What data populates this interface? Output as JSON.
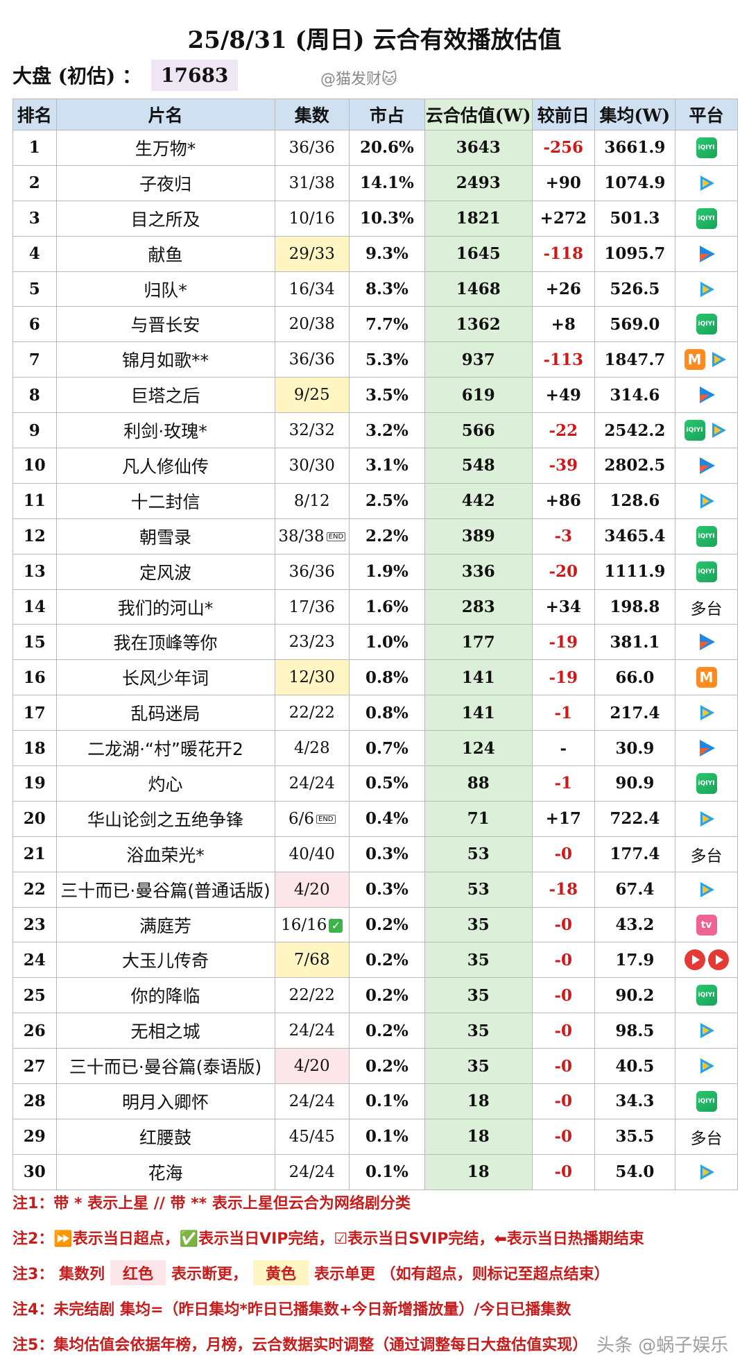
{
  "title": "25/8/31 (周日) 云合有效播放估值",
  "summary": {
    "label": "大盘 (初估) ：",
    "value": "17683"
  },
  "watermark": "@猫发财🐱",
  "headers": [
    "排名",
    "片名",
    "集数",
    "市占",
    "云合估值(W)",
    "较前日",
    "集均(W)",
    "平台"
  ],
  "rows": [
    {
      "rank": "1",
      "title": "生万物*",
      "eps": "36/36",
      "share": "20.6%",
      "est": "3643",
      "delta": "-256",
      "avg": "3661.9",
      "platforms": [
        "iqiyi"
      ]
    },
    {
      "rank": "2",
      "title": "子夜归",
      "eps": "31/38",
      "share": "14.1%",
      "est": "2493",
      "delta": "+90",
      "avg": "1074.9",
      "platforms": [
        "tencent"
      ]
    },
    {
      "rank": "3",
      "title": "目之所及",
      "eps": "10/16",
      "share": "10.3%",
      "est": "1821",
      "delta": "+272",
      "avg": "501.3",
      "platforms": [
        "iqiyi"
      ]
    },
    {
      "rank": "4",
      "title": "献鱼",
      "eps": "29/33",
      "share": "9.3%",
      "est": "1645",
      "delta": "-118",
      "avg": "1095.7",
      "platforms": [
        "youku"
      ],
      "eps_hl": "yellow"
    },
    {
      "rank": "5",
      "title": "归队*",
      "eps": "16/34",
      "share": "8.3%",
      "est": "1468",
      "delta": "+26",
      "avg": "526.5",
      "platforms": [
        "tencent"
      ]
    },
    {
      "rank": "6",
      "title": "与晋长安",
      "eps": "20/38",
      "share": "7.7%",
      "est": "1362",
      "delta": "+8",
      "avg": "569.0",
      "platforms": [
        "iqiyi"
      ]
    },
    {
      "rank": "7",
      "title": "锦月如歌**",
      "eps": "36/36",
      "share": "5.3%",
      "est": "937",
      "delta": "-113",
      "avg": "1847.7",
      "platforms": [
        "mango",
        "tencent"
      ]
    },
    {
      "rank": "8",
      "title": "巨塔之后",
      "eps": "9/25",
      "share": "3.5%",
      "est": "619",
      "delta": "+49",
      "avg": "314.6",
      "platforms": [
        "youku"
      ],
      "eps_hl": "yellow"
    },
    {
      "rank": "9",
      "title": "利剑·玫瑰*",
      "eps": "32/32",
      "share": "3.2%",
      "est": "566",
      "delta": "-22",
      "avg": "2542.2",
      "platforms": [
        "iqiyi",
        "tencent"
      ]
    },
    {
      "rank": "10",
      "title": "凡人修仙传",
      "eps": "30/30",
      "share": "3.1%",
      "est": "548",
      "delta": "-39",
      "avg": "2802.5",
      "platforms": [
        "youku"
      ]
    },
    {
      "rank": "11",
      "title": "十二封信",
      "eps": "8/12",
      "share": "2.5%",
      "est": "442",
      "delta": "+86",
      "avg": "128.6",
      "platforms": [
        "tencent"
      ]
    },
    {
      "rank": "12",
      "title": "朝雪录",
      "eps": "38/38",
      "share": "2.2%",
      "est": "389",
      "delta": "-3",
      "avg": "3465.4",
      "platforms": [
        "iqiyi"
      ],
      "end": "END"
    },
    {
      "rank": "13",
      "title": "定风波",
      "eps": "36/36",
      "share": "1.9%",
      "est": "336",
      "delta": "-20",
      "avg": "1111.9",
      "platforms": [
        "iqiyi"
      ]
    },
    {
      "rank": "14",
      "title": "我们的河山*",
      "eps": "17/36",
      "share": "1.6%",
      "est": "283",
      "delta": "+34",
      "avg": "198.8",
      "platform_text": "多台"
    },
    {
      "rank": "15",
      "title": "我在顶峰等你",
      "eps": "23/23",
      "share": "1.0%",
      "est": "177",
      "delta": "-19",
      "avg": "381.1",
      "platforms": [
        "youku"
      ]
    },
    {
      "rank": "16",
      "title": "长风少年词",
      "eps": "12/30",
      "share": "0.8%",
      "est": "141",
      "delta": "-19",
      "avg": "66.0",
      "platforms": [
        "mango"
      ],
      "eps_hl": "yellow"
    },
    {
      "rank": "17",
      "title": "乱码迷局",
      "eps": "22/22",
      "share": "0.8%",
      "est": "141",
      "delta": "-1",
      "avg": "217.4",
      "platforms": [
        "tencent"
      ]
    },
    {
      "rank": "18",
      "title": "二龙湖·“村”暖花开2",
      "eps": "4/28",
      "share": "0.7%",
      "est": "124",
      "delta": "-",
      "avg": "30.9",
      "platforms": [
        "youku"
      ]
    },
    {
      "rank": "19",
      "title": "灼心",
      "eps": "24/24",
      "share": "0.5%",
      "est": "88",
      "delta": "-1",
      "avg": "90.9",
      "platforms": [
        "iqiyi"
      ]
    },
    {
      "rank": "20",
      "title": "华山论剑之五绝争锋",
      "eps": "6/6",
      "share": "0.4%",
      "est": "71",
      "delta": "+17",
      "avg": "722.4",
      "platforms": [
        "tencent"
      ],
      "end": "END"
    },
    {
      "rank": "21",
      "title": "浴血荣光*",
      "eps": "40/40",
      "share": "0.3%",
      "est": "53",
      "delta": "-0",
      "avg": "177.4",
      "platform_text": "多台"
    },
    {
      "rank": "22",
      "title": "三十而已·曼谷篇(普通话版)",
      "eps": "4/20",
      "share": "0.3%",
      "est": "53",
      "delta": "-18",
      "avg": "67.4",
      "platforms": [
        "tencent"
      ],
      "eps_hl": "red"
    },
    {
      "rank": "23",
      "title": "满庭芳",
      "eps": "16/16",
      "share": "0.2%",
      "est": "35",
      "delta": "-0",
      "avg": "43.2",
      "platforms": [
        "bili"
      ],
      "vip": "✓"
    },
    {
      "rank": "24",
      "title": "大玉儿传奇",
      "eps": "7/68",
      "share": "0.2%",
      "est": "35",
      "delta": "-0",
      "avg": "17.9",
      "platforms": [
        "red",
        "red"
      ],
      "eps_hl": "yellow"
    },
    {
      "rank": "25",
      "title": "你的降临",
      "eps": "22/22",
      "share": "0.2%",
      "est": "35",
      "delta": "-0",
      "avg": "90.2",
      "platforms": [
        "iqiyi"
      ]
    },
    {
      "rank": "26",
      "title": "无相之城",
      "eps": "24/24",
      "share": "0.2%",
      "est": "35",
      "delta": "-0",
      "avg": "98.5",
      "platforms": [
        "tencent"
      ]
    },
    {
      "rank": "27",
      "title": "三十而已·曼谷篇(泰语版)",
      "eps": "4/20",
      "share": "0.2%",
      "est": "35",
      "delta": "-0",
      "avg": "40.5",
      "platforms": [
        "tencent"
      ],
      "eps_hl": "red"
    },
    {
      "rank": "28",
      "title": "明月入卿怀",
      "eps": "24/24",
      "share": "0.1%",
      "est": "18",
      "delta": "-0",
      "avg": "34.3",
      "platforms": [
        "iqiyi"
      ]
    },
    {
      "rank": "29",
      "title": "红腰鼓",
      "eps": "45/45",
      "share": "0.1%",
      "est": "18",
      "delta": "-0",
      "avg": "35.5",
      "platform_text": "多台"
    },
    {
      "rank": "30",
      "title": "花海",
      "eps": "24/24",
      "share": "0.1%",
      "est": "18",
      "delta": "-0",
      "avg": "54.0",
      "platforms": [
        "tencent"
      ]
    }
  ],
  "iqiyi_label": "iQIYI",
  "notes": {
    "n1": "注1：带 * 表示上星 // 带 ** 表示上星但云合为网络剧分类",
    "n2": "注2：⏩表示当日超点，✅表示当日VIP完结，☑表示当日SVIP完结，⬅表示当日热播期结束",
    "n3_prefix": "注3：  集数列",
    "n3_red": "红色",
    "n3_mid": "表示断更，",
    "n3_yellow": "黄色",
    "n3_suffix": "表示单更 （如有超点，则标记至超点结束）",
    "n4": "注4：未完结剧 集均=（昨日集均*昨日已播集数+今日新增播放量）/今日已播集数",
    "n5": "注5：集均估值会依据年榜，月榜，云合数据实时调整（通过调整每日大盘估值实现）"
  },
  "footer_watermark": "头条 @蜗子娱乐"
}
